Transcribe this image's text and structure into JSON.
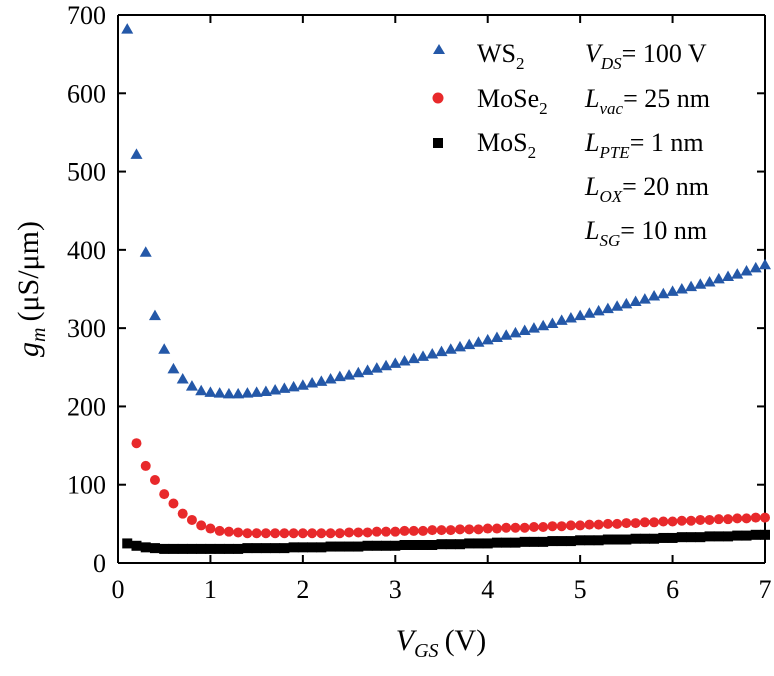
{
  "chart_data": {
    "type": "scatter",
    "xlabel": {
      "main": "V",
      "sub": "GS",
      "unit": "(V)"
    },
    "ylabel": {
      "main": "g",
      "sub": "m",
      "unit": "(μS/μm)"
    },
    "xlim": [
      0,
      7
    ],
    "ylim": [
      0,
      700
    ],
    "xticks": [
      0,
      1,
      2,
      3,
      4,
      5,
      6,
      7
    ],
    "yticks": [
      0,
      100,
      200,
      300,
      400,
      500,
      600,
      700
    ],
    "grid": false,
    "legend_position": "top-right",
    "series": [
      {
        "name": "WS2",
        "name_main": "WS",
        "name_sub": "2",
        "marker": "triangle",
        "color": "#2458A8",
        "x": [
          0.1,
          0.2,
          0.3,
          0.4,
          0.5,
          0.6,
          0.7,
          0.8,
          0.9,
          1.0,
          1.1,
          1.2,
          1.3,
          1.4,
          1.5,
          1.6,
          1.7,
          1.8,
          1.9,
          2.0,
          2.1,
          2.2,
          2.3,
          2.4,
          2.5,
          2.6,
          2.7,
          2.8,
          2.9,
          3.0,
          3.1,
          3.2,
          3.3,
          3.4,
          3.5,
          3.6,
          3.7,
          3.8,
          3.9,
          4.0,
          4.1,
          4.2,
          4.3,
          4.4,
          4.5,
          4.6,
          4.7,
          4.8,
          4.9,
          5.0,
          5.1,
          5.2,
          5.3,
          5.4,
          5.5,
          5.6,
          5.7,
          5.8,
          5.9,
          6.0,
          6.1,
          6.2,
          6.3,
          6.4,
          6.5,
          6.6,
          6.7,
          6.8,
          6.9,
          7.0
        ],
        "y": [
          682,
          522,
          397,
          316,
          273,
          248,
          235,
          226,
          220,
          218,
          217,
          216,
          216,
          217,
          218,
          219,
          221,
          223,
          225,
          227,
          230,
          232,
          235,
          238,
          240,
          243,
          246,
          249,
          252,
          255,
          258,
          261,
          264,
          267,
          270,
          273,
          276,
          279,
          282,
          285,
          288,
          291,
          294,
          297,
          300,
          303,
          306,
          310,
          313,
          316,
          319,
          322,
          325,
          328,
          331,
          334,
          337,
          341,
          344,
          347,
          350,
          353,
          356,
          359,
          363,
          366,
          369,
          373,
          377,
          381
        ]
      },
      {
        "name": "MoSe2",
        "name_main": "MoSe",
        "name_sub": "2",
        "marker": "circle",
        "color": "#E8292B",
        "x": [
          0.2,
          0.3,
          0.4,
          0.5,
          0.6,
          0.7,
          0.8,
          0.9,
          1.0,
          1.1,
          1.2,
          1.3,
          1.4,
          1.5,
          1.6,
          1.7,
          1.8,
          1.9,
          2.0,
          2.1,
          2.2,
          2.3,
          2.4,
          2.5,
          2.6,
          2.7,
          2.8,
          2.9,
          3.0,
          3.1,
          3.2,
          3.3,
          3.4,
          3.5,
          3.6,
          3.7,
          3.8,
          3.9,
          4.0,
          4.1,
          4.2,
          4.3,
          4.4,
          4.5,
          4.6,
          4.7,
          4.8,
          4.9,
          5.0,
          5.1,
          5.2,
          5.3,
          5.4,
          5.5,
          5.6,
          5.7,
          5.8,
          5.9,
          6.0,
          6.1,
          6.2,
          6.3,
          6.4,
          6.5,
          6.6,
          6.7,
          6.8,
          6.9,
          7.0
        ],
        "y": [
          153,
          124,
          106,
          88,
          76,
          63,
          55,
          48,
          44,
          41,
          40,
          39,
          38,
          38,
          38,
          38,
          38,
          38,
          38,
          38,
          38,
          38,
          38,
          39,
          39,
          39,
          40,
          40,
          40,
          41,
          41,
          41,
          42,
          42,
          42,
          43,
          43,
          43,
          44,
          44,
          45,
          45,
          45,
          46,
          46,
          47,
          47,
          48,
          48,
          49,
          49,
          50,
          50,
          51,
          51,
          52,
          52,
          53,
          53,
          54,
          54,
          55,
          55,
          56,
          56,
          57,
          57,
          58,
          58
        ]
      },
      {
        "name": "MoS2",
        "name_main": "MoS",
        "name_sub": "2",
        "marker": "square",
        "color": "#000000",
        "x": [
          0.1,
          0.2,
          0.3,
          0.4,
          0.5,
          0.6,
          0.7,
          0.8,
          0.9,
          1.0,
          1.1,
          1.2,
          1.3,
          1.4,
          1.5,
          1.6,
          1.7,
          1.8,
          1.9,
          2.0,
          2.1,
          2.2,
          2.3,
          2.4,
          2.5,
          2.6,
          2.7,
          2.8,
          2.9,
          3.0,
          3.1,
          3.2,
          3.3,
          3.4,
          3.5,
          3.6,
          3.7,
          3.8,
          3.9,
          4.0,
          4.1,
          4.2,
          4.3,
          4.4,
          4.5,
          4.6,
          4.7,
          4.8,
          4.9,
          5.0,
          5.1,
          5.2,
          5.3,
          5.4,
          5.5,
          5.6,
          5.7,
          5.8,
          5.9,
          6.0,
          6.1,
          6.2,
          6.3,
          6.4,
          6.5,
          6.6,
          6.7,
          6.8,
          6.9,
          7.0
        ],
        "y": [
          25,
          22,
          20,
          19,
          18,
          18,
          18,
          18,
          18,
          18,
          18,
          18,
          18,
          19,
          19,
          19,
          19,
          19,
          20,
          20,
          20,
          20,
          21,
          21,
          21,
          21,
          22,
          22,
          22,
          22,
          23,
          23,
          23,
          23,
          24,
          24,
          24,
          25,
          25,
          25,
          26,
          26,
          26,
          27,
          27,
          27,
          28,
          28,
          28,
          29,
          29,
          29,
          30,
          30,
          30,
          31,
          31,
          31,
          32,
          32,
          33,
          33,
          33,
          34,
          34,
          34,
          35,
          35,
          36,
          36
        ]
      }
    ],
    "annotations": [
      {
        "main": "V",
        "sub": "DS",
        "value": "= 100 V"
      },
      {
        "main": "L",
        "sub": "vac",
        "value": "= 25 nm"
      },
      {
        "main": "L",
        "sub": "PTE",
        "value": "= 1 nm"
      },
      {
        "main": "L",
        "sub": "OX",
        "value": "= 20 nm"
      },
      {
        "main": "L",
        "sub": "SG",
        "value": "= 10 nm"
      }
    ]
  }
}
